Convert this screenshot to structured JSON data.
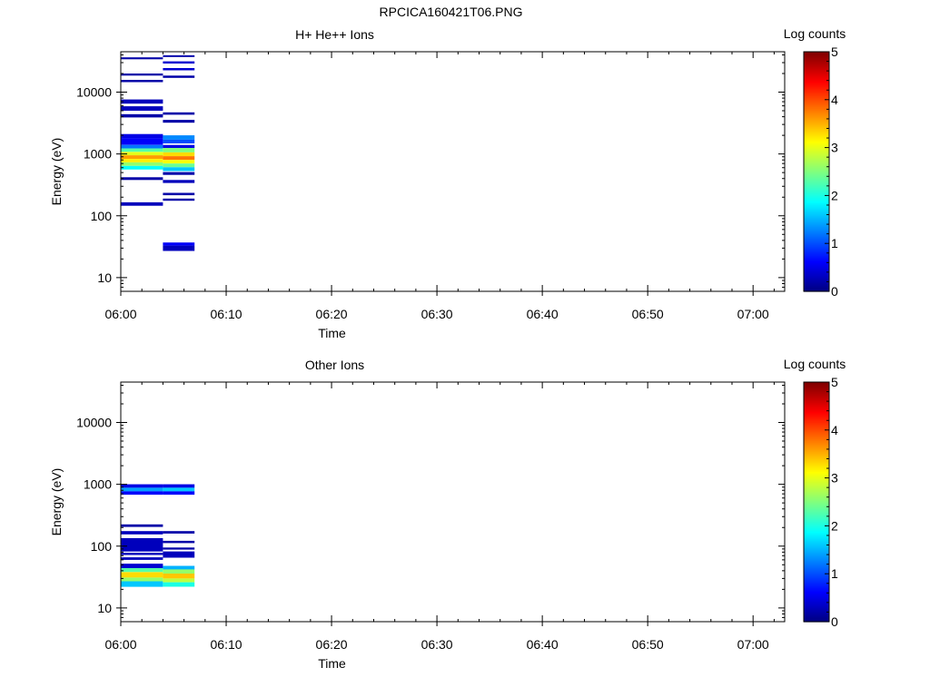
{
  "figure_title": "RPCICA160421T06.PNG",
  "colorbar": {
    "label": "Log counts",
    "range": [
      0,
      5
    ],
    "ticks": [
      "0",
      "1",
      "2",
      "3",
      "4",
      "5"
    ],
    "colormap": "jet",
    "colors": [
      "#00007f",
      "#0000ff",
      "#007fff",
      "#00ffff",
      "#7fff7f",
      "#ffff00",
      "#ff7f00",
      "#ff0000",
      "#7f0000"
    ]
  },
  "chart_data": [
    {
      "type": "heatmap",
      "title": "H+ He++ Ions",
      "xlabel": "Time",
      "ylabel": "Energy (eV)",
      "x_range": [
        "06:00",
        "07:03"
      ],
      "x_ticks": [
        "06:00",
        "06:10",
        "06:20",
        "06:30",
        "06:40",
        "06:50",
        "07:00"
      ],
      "y_scale": "log",
      "y_range": [
        6,
        45000
      ],
      "y_ticks": [
        "10",
        "100",
        "1000",
        "10000"
      ],
      "z_label": "Log counts",
      "z_range": [
        0,
        5
      ],
      "cells": [
        {
          "t0": "06:00",
          "t1": "06:04",
          "e0": 34000,
          "e1": 36500,
          "z": 0.2
        },
        {
          "t0": "06:00",
          "t1": "06:04",
          "e0": 18500,
          "e1": 20000,
          "z": 0.2
        },
        {
          "t0": "06:00",
          "t1": "06:04",
          "e0": 14500,
          "e1": 15800,
          "z": 0.2
        },
        {
          "t0": "06:00",
          "t1": "06:04",
          "e0": 6500,
          "e1": 7600,
          "z": 0.3
        },
        {
          "t0": "06:00",
          "t1": "06:04",
          "e0": 5000,
          "e1": 5900,
          "z": 0.3
        },
        {
          "t0": "06:00",
          "t1": "06:04",
          "e0": 3900,
          "e1": 4400,
          "z": 0.2
        },
        {
          "t0": "06:00",
          "t1": "06:04",
          "e0": 1800,
          "e1": 2100,
          "z": 0.5
        },
        {
          "t0": "06:00",
          "t1": "06:04",
          "e0": 1400,
          "e1": 1800,
          "z": 0.6
        },
        {
          "t0": "06:00",
          "t1": "06:04",
          "e0": 1230,
          "e1": 1400,
          "z": 1.2
        },
        {
          "t0": "06:00",
          "t1": "06:04",
          "e0": 1080,
          "e1": 1230,
          "z": 2.3
        },
        {
          "t0": "06:00",
          "t1": "06:04",
          "e0": 950,
          "e1": 1080,
          "z": 3.0
        },
        {
          "t0": "06:00",
          "t1": "06:04",
          "e0": 830,
          "e1": 950,
          "z": 3.6
        },
        {
          "t0": "06:00",
          "t1": "06:04",
          "e0": 730,
          "e1": 830,
          "z": 3.2
        },
        {
          "t0": "06:00",
          "t1": "06:04",
          "e0": 640,
          "e1": 730,
          "z": 2.6
        },
        {
          "t0": "06:00",
          "t1": "06:04",
          "e0": 560,
          "e1": 640,
          "z": 1.9
        },
        {
          "t0": "06:00",
          "t1": "06:04",
          "e0": 380,
          "e1": 420,
          "z": 0.2
        },
        {
          "t0": "06:00",
          "t1": "06:04",
          "e0": 145,
          "e1": 165,
          "z": 0.3
        },
        {
          "t0": "06:04",
          "t1": "06:07",
          "e0": 37000,
          "e1": 39500,
          "z": 0.2
        },
        {
          "t0": "06:04",
          "t1": "06:07",
          "e0": 29000,
          "e1": 31500,
          "z": 0.4
        },
        {
          "t0": "06:04",
          "t1": "06:07",
          "e0": 22500,
          "e1": 24500,
          "z": 0.4
        },
        {
          "t0": "06:04",
          "t1": "06:07",
          "e0": 17000,
          "e1": 18500,
          "z": 0.2
        },
        {
          "t0": "06:04",
          "t1": "06:07",
          "e0": 4300,
          "e1": 4700,
          "z": 0.2
        },
        {
          "t0": "06:04",
          "t1": "06:07",
          "e0": 3200,
          "e1": 3550,
          "z": 0.2
        },
        {
          "t0": "06:04",
          "t1": "06:07",
          "e0": 1700,
          "e1": 2000,
          "z": 1.3
        },
        {
          "t0": "06:04",
          "t1": "06:07",
          "e0": 1480,
          "e1": 1700,
          "z": 1.0
        },
        {
          "t0": "06:04",
          "t1": "06:07",
          "e0": 1250,
          "e1": 1400,
          "z": 0.5
        },
        {
          "t0": "06:04",
          "t1": "06:07",
          "e0": 1060,
          "e1": 1250,
          "z": 2.5
        },
        {
          "t0": "06:04",
          "t1": "06:07",
          "e0": 920,
          "e1": 1060,
          "z": 3.3
        },
        {
          "t0": "06:04",
          "t1": "06:07",
          "e0": 800,
          "e1": 920,
          "z": 3.8
        },
        {
          "t0": "06:04",
          "t1": "06:07",
          "e0": 700,
          "e1": 800,
          "z": 3.1
        },
        {
          "t0": "06:04",
          "t1": "06:07",
          "e0": 610,
          "e1": 700,
          "z": 2.4
        },
        {
          "t0": "06:04",
          "t1": "06:07",
          "e0": 530,
          "e1": 610,
          "z": 1.6
        },
        {
          "t0": "06:04",
          "t1": "06:07",
          "e0": 460,
          "e1": 510,
          "z": 0.2
        },
        {
          "t0": "06:04",
          "t1": "06:07",
          "e0": 340,
          "e1": 380,
          "z": 0.3
        },
        {
          "t0": "06:04",
          "t1": "06:07",
          "e0": 215,
          "e1": 235,
          "z": 0.2
        },
        {
          "t0": "06:04",
          "t1": "06:07",
          "e0": 175,
          "e1": 190,
          "z": 0.2
        },
        {
          "t0": "06:04",
          "t1": "06:07",
          "e0": 33,
          "e1": 37,
          "z": 0.6
        },
        {
          "t0": "06:04",
          "t1": "06:07",
          "e0": 27,
          "e1": 33,
          "z": 0.3
        }
      ]
    },
    {
      "type": "heatmap",
      "title": "Other Ions",
      "xlabel": "Time",
      "ylabel": "Energy (eV)",
      "x_range": [
        "06:00",
        "07:03"
      ],
      "x_ticks": [
        "06:00",
        "06:10",
        "06:20",
        "06:30",
        "06:40",
        "06:50",
        "07:00"
      ],
      "y_scale": "log",
      "y_range": [
        6,
        45000
      ],
      "y_ticks": [
        "10",
        "100",
        "1000",
        "10000"
      ],
      "z_label": "Log counts",
      "z_range": [
        0,
        5
      ],
      "cells": [
        {
          "t0": "06:00",
          "t1": "06:04",
          "e0": 880,
          "e1": 1000,
          "z": 0.5
        },
        {
          "t0": "06:00",
          "t1": "06:04",
          "e0": 770,
          "e1": 880,
          "z": 1.4
        },
        {
          "t0": "06:00",
          "t1": "06:04",
          "e0": 680,
          "e1": 770,
          "z": 0.6
        },
        {
          "t0": "06:00",
          "t1": "06:04",
          "e0": 205,
          "e1": 225,
          "z": 0.2
        },
        {
          "t0": "06:00",
          "t1": "06:04",
          "e0": 155,
          "e1": 175,
          "z": 0.3
        },
        {
          "t0": "06:00",
          "t1": "06:04",
          "e0": 82,
          "e1": 135,
          "z": 0.3
        },
        {
          "t0": "06:00",
          "t1": "06:04",
          "e0": 72,
          "e1": 78,
          "z": 0.3
        },
        {
          "t0": "06:00",
          "t1": "06:04",
          "e0": 60,
          "e1": 66,
          "z": 0.3
        },
        {
          "t0": "06:00",
          "t1": "06:04",
          "e0": 44,
          "e1": 52,
          "z": 0.4
        },
        {
          "t0": "06:00",
          "t1": "06:04",
          "e0": 38,
          "e1": 44,
          "z": 2.3
        },
        {
          "t0": "06:00",
          "t1": "06:04",
          "e0": 31,
          "e1": 38,
          "z": 3.3
        },
        {
          "t0": "06:00",
          "t1": "06:04",
          "e0": 27,
          "e1": 31,
          "z": 2.6
        },
        {
          "t0": "06:00",
          "t1": "06:04",
          "e0": 22,
          "e1": 27,
          "z": 1.6
        },
        {
          "t0": "06:04",
          "t1": "06:07",
          "e0": 880,
          "e1": 1000,
          "z": 0.5
        },
        {
          "t0": "06:04",
          "t1": "06:07",
          "e0": 770,
          "e1": 880,
          "z": 1.6
        },
        {
          "t0": "06:04",
          "t1": "06:07",
          "e0": 680,
          "e1": 770,
          "z": 0.6
        },
        {
          "t0": "06:04",
          "t1": "06:07",
          "e0": 160,
          "e1": 175,
          "z": 0.2
        },
        {
          "t0": "06:04",
          "t1": "06:07",
          "e0": 112,
          "e1": 122,
          "z": 0.2
        },
        {
          "t0": "06:04",
          "t1": "06:07",
          "e0": 88,
          "e1": 95,
          "z": 0.2
        },
        {
          "t0": "06:04",
          "t1": "06:07",
          "e0": 65,
          "e1": 82,
          "z": 0.3
        },
        {
          "t0": "06:04",
          "t1": "06:07",
          "e0": 42,
          "e1": 48,
          "z": 1.5
        },
        {
          "t0": "06:04",
          "t1": "06:07",
          "e0": 36,
          "e1": 42,
          "z": 2.6
        },
        {
          "t0": "06:04",
          "t1": "06:07",
          "e0": 30,
          "e1": 36,
          "z": 3.4
        },
        {
          "t0": "06:04",
          "t1": "06:07",
          "e0": 26,
          "e1": 30,
          "z": 2.8
        },
        {
          "t0": "06:04",
          "t1": "06:07",
          "e0": 22,
          "e1": 26,
          "z": 2.0
        }
      ]
    }
  ]
}
